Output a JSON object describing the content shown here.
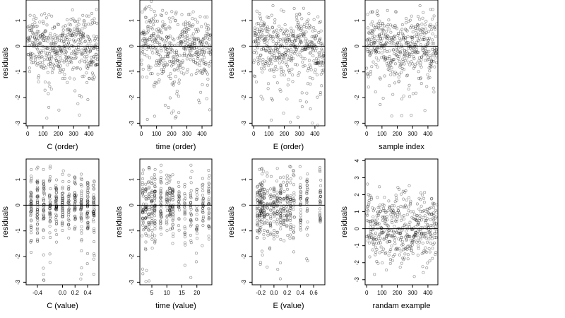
{
  "chart_data": [
    {
      "type": "scatter",
      "title": "",
      "xlabel": "C (order)",
      "ylabel": "residuals",
      "xlim": [
        -10,
        465
      ],
      "ylim": [
        -3.1,
        1.8
      ],
      "xticks": [
        0,
        100,
        200,
        300,
        400
      ],
      "yticks": [
        -3,
        -2,
        -1,
        0,
        1
      ],
      "reference_line": 0,
      "n_points": 460,
      "approx_residual_range": [
        -3.0,
        1.6
      ],
      "approx_residual_center": 0.05
    },
    {
      "type": "scatter",
      "title": "",
      "xlabel": "time (order)",
      "ylabel": "residuals",
      "xlim": [
        -10,
        465
      ],
      "ylim": [
        -3.1,
        1.8
      ],
      "xticks": [
        0,
        100,
        200,
        300,
        400
      ],
      "yticks": [
        -3,
        -2,
        -1,
        0,
        1
      ],
      "reference_line": 0,
      "n_points": 460,
      "approx_residual_range": [
        -3.0,
        1.6
      ],
      "approx_residual_center": 0.05
    },
    {
      "type": "scatter",
      "title": "",
      "xlabel": "E (order)",
      "ylabel": "residuals",
      "xlim": [
        -10,
        465
      ],
      "ylim": [
        -3.1,
        1.8
      ],
      "xticks": [
        0,
        100,
        200,
        300,
        400
      ],
      "yticks": [
        -3,
        -2,
        -1,
        0,
        1
      ],
      "reference_line": 0,
      "n_points": 460,
      "approx_residual_range": [
        -3.0,
        1.6
      ],
      "approx_residual_center": 0.05
    },
    {
      "type": "scatter",
      "title": "",
      "xlabel": "sample index",
      "ylabel": "residuals",
      "xlim": [
        -10,
        465
      ],
      "ylim": [
        -3.1,
        1.8
      ],
      "xticks": [
        0,
        100,
        200,
        300,
        400
      ],
      "yticks": [
        -3,
        -2,
        -1,
        0,
        1
      ],
      "reference_line": 0,
      "n_points": 460,
      "approx_residual_range": [
        -3.0,
        1.6
      ],
      "approx_residual_center": 0.05
    },
    {
      "type": "scatter",
      "title": "",
      "xlabel": "C (value)",
      "ylabel": "residuals",
      "xlim": [
        -0.58,
        0.58
      ],
      "ylim": [
        -3.1,
        1.8
      ],
      "xticks": [
        -0.4,
        0.0,
        0.2,
        0.4
      ],
      "xtick_labels": [
        "-0.4",
        "0.0",
        "0.2",
        "0.4"
      ],
      "yticks": [
        -3,
        -2,
        -1,
        0,
        1
      ],
      "reference_line": 0,
      "x_clusters": [
        -0.5,
        -0.4,
        -0.3,
        -0.2,
        -0.1,
        0.0,
        0.1,
        0.2,
        0.3,
        0.4,
        0.5
      ],
      "approx_residual_range": [
        -3.0,
        1.6
      ]
    },
    {
      "type": "scatter",
      "title": "",
      "xlabel": "time (value)",
      "ylabel": "residuals",
      "xlim": [
        1,
        25
      ],
      "ylim": [
        -3.1,
        1.8
      ],
      "xticks": [
        5,
        10,
        15,
        20
      ],
      "yticks": [
        -3,
        -2,
        -1,
        0,
        1
      ],
      "reference_line": 0,
      "x_clusters": [
        2,
        3,
        4,
        5,
        6,
        8,
        10,
        11,
        12,
        14,
        16,
        18,
        20,
        22,
        24
      ],
      "approx_residual_range": [
        -3.0,
        1.6
      ]
    },
    {
      "type": "scatter",
      "title": "",
      "xlabel": "E (value)",
      "ylabel": "residuals",
      "xlim": [
        -0.33,
        0.77
      ],
      "ylim": [
        -3.1,
        1.8
      ],
      "xticks": [
        -0.2,
        0.0,
        0.2,
        0.4,
        0.6
      ],
      "xtick_labels": [
        "-0.2",
        "0.0",
        "0.2",
        "0.4",
        "0.6"
      ],
      "yticks": [
        -3,
        -2,
        -1,
        0,
        1
      ],
      "reference_line": 0,
      "x_clusters": [
        -0.25,
        -0.22,
        -0.2,
        -0.18,
        -0.15,
        -0.1,
        -0.05,
        0.0,
        0.05,
        0.1,
        0.15,
        0.2,
        0.25,
        0.3,
        0.4,
        0.5,
        0.7
      ],
      "approx_residual_range": [
        -3.0,
        1.6
      ]
    },
    {
      "type": "scatter",
      "title": "",
      "xlabel": "randam example",
      "ylabel": "residuals",
      "xlim": [
        -10,
        465
      ],
      "ylim": [
        -3.3,
        4.1
      ],
      "xticks": [
        0,
        100,
        200,
        300,
        400
      ],
      "yticks": [
        -3,
        -2,
        -1,
        0,
        1,
        2,
        3,
        4
      ],
      "reference_line": 0,
      "n_points": 460,
      "approx_residual_range": [
        -3.0,
        3.8
      ],
      "approx_residual_center": 0.0
    }
  ]
}
